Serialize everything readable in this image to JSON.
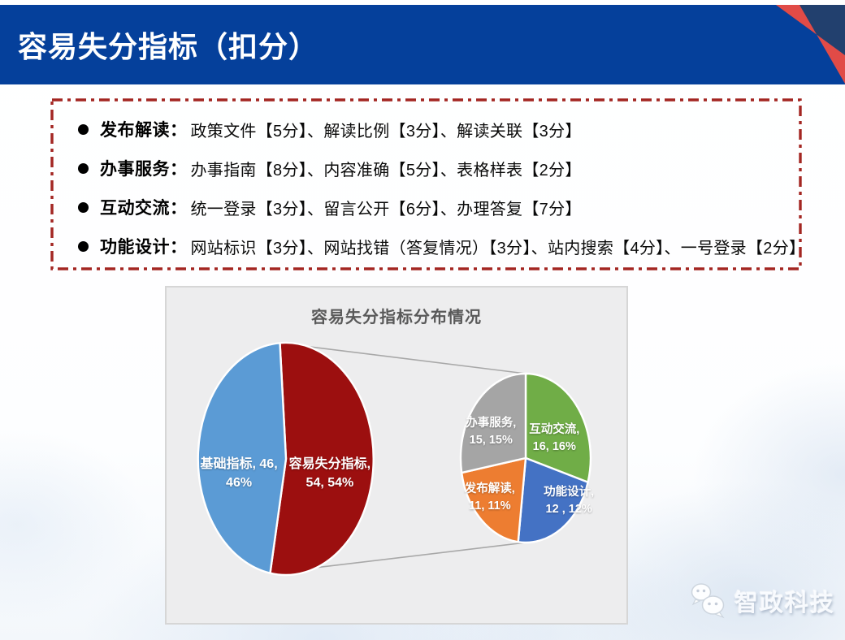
{
  "header": {
    "title": "容易失分指标（扣分）"
  },
  "list": {
    "items": [
      {
        "label": "发布解读：",
        "text": "政策文件【5分】、解读比例【3分】、解读关联【3分】"
      },
      {
        "label": "办事服务：",
        "text": "办事指南【8分】、内容准确【5分】、表格样表【2分】"
      },
      {
        "label": "互动交流：",
        "text": "统一登录【3分】、留言公开【6分】、办理答复【7分】"
      },
      {
        "label": "功能设计：",
        "text": "网站标识【3分】、网站找错（答复情况）【3分】、站内搜索【4分】、一号登录【2分】"
      }
    ]
  },
  "chart_data": {
    "type": "pie-of-pie",
    "title": "容易失分指标分布情况",
    "legend": "none",
    "label_format": "name, value, percent",
    "main_series": {
      "total": 100,
      "start_angle_deg": -4,
      "slices": [
        {
          "name": "容易失分指标",
          "value": 54,
          "pct": "54%",
          "color": "#9C0F0F",
          "label_lines": [
            "容易失分指标,",
            "54, 54%"
          ]
        },
        {
          "name": "基础指标",
          "value": 46,
          "pct": "46%",
          "color": "#5B9BD5",
          "label_lines": [
            "基础指标, 46,",
            "46%"
          ]
        }
      ]
    },
    "secondary_series": {
      "total": 54,
      "start_angle_deg": 0,
      "slices": [
        {
          "name": "互动交流",
          "value": 16,
          "pct": "16%",
          "color": "#70AD47",
          "label_lines": [
            "互动交流,",
            "16, 16%"
          ]
        },
        {
          "name": "功能设计",
          "value": 12,
          "pct": "12%",
          "color": "#4472C4",
          "label_lines": [
            "功能设计,",
            "12 , 12%"
          ]
        },
        {
          "name": "发布解读",
          "value": 11,
          "pct": "11%",
          "color": "#ED7D31",
          "label_lines": [
            "发布解读,",
            "11, 11%"
          ]
        },
        {
          "name": "办事服务",
          "value": 15,
          "pct": "15%",
          "color": "#A5A5A5",
          "label_lines": [
            "办事服务,",
            "15, 15%"
          ]
        }
      ]
    },
    "colors": {
      "panel_bg": "#EDEDEE",
      "panel_border": "#D6D6D6",
      "title_text": "#595959",
      "label_text": "#FFFFFF",
      "connector": "#A8A8A8",
      "slice_outline": "#FFFFFF"
    }
  },
  "theme_colors": {
    "header_bg": "#05409B",
    "corner_navy": "#22406E",
    "corner_red": "#E14B47",
    "dashed_border_red": "#A32622",
    "bullet_black": "#000000"
  },
  "watermark": {
    "brand": "智政科技",
    "icon": "wechat-icon"
  }
}
